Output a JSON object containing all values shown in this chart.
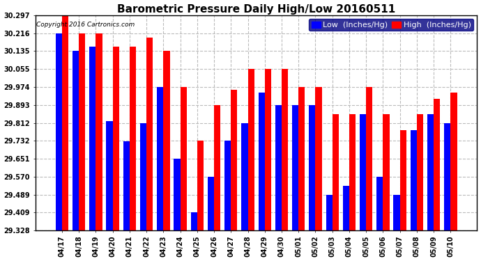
{
  "title": "Barometric Pressure Daily High/Low 20160511",
  "copyright": "Copyright 2016 Cartronics.com",
  "legend_low": "Low  (Inches/Hg)",
  "legend_high": "High  (Inches/Hg)",
  "categories": [
    "04/17",
    "04/18",
    "04/19",
    "04/20",
    "04/21",
    "04/22",
    "04/23",
    "04/24",
    "04/25",
    "04/26",
    "04/27",
    "04/28",
    "04/29",
    "04/30",
    "05/01",
    "05/02",
    "05/03",
    "05/04",
    "05/05",
    "05/06",
    "05/07",
    "05/08",
    "05/09",
    "05/10"
  ],
  "high_values": [
    30.297,
    30.216,
    30.216,
    30.155,
    30.155,
    30.195,
    30.135,
    29.974,
    29.732,
    29.893,
    29.96,
    30.055,
    30.055,
    30.055,
    29.974,
    29.974,
    29.851,
    29.851,
    29.974,
    29.851,
    29.78,
    29.851,
    29.92,
    29.95
  ],
  "low_values": [
    30.216,
    30.135,
    30.155,
    29.82,
    29.73,
    29.812,
    29.974,
    29.651,
    29.409,
    29.57,
    29.732,
    29.812,
    29.95,
    29.893,
    29.893,
    29.893,
    29.489,
    29.53,
    29.852,
    29.57,
    29.489,
    29.78,
    29.852,
    29.812
  ],
  "ylim": [
    29.328,
    30.297
  ],
  "yticks": [
    29.328,
    29.409,
    29.489,
    29.57,
    29.651,
    29.732,
    29.812,
    29.893,
    29.974,
    30.055,
    30.135,
    30.216,
    30.297
  ],
  "bar_width": 0.38,
  "high_color": "#ff0000",
  "low_color": "#0000ff",
  "background_color": "#ffffff",
  "title_fontsize": 11,
  "legend_fontsize": 8,
  "tick_fontsize": 7,
  "grid_color": "#bbbbbb"
}
